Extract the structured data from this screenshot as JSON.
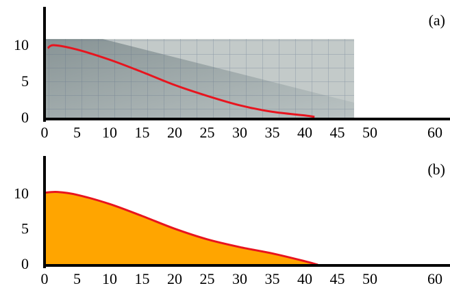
{
  "chart_data": [
    {
      "type": "line",
      "annotation": "(a)",
      "x": [
        0.5,
        1.5,
        5,
        10,
        15,
        20,
        25,
        30,
        35,
        40,
        41.5
      ],
      "values": [
        9.8,
        10.2,
        9.6,
        8.2,
        6.5,
        4.7,
        3.2,
        1.9,
        1.0,
        0.5,
        0.3
      ],
      "color": "#e8141e",
      "xlim": [
        0,
        62
      ],
      "xticks": [
        0,
        5,
        10,
        15,
        20,
        25,
        30,
        35,
        40,
        45,
        50,
        60
      ],
      "ylim": [
        0,
        15.5
      ],
      "yticks": [
        0,
        5,
        10
      ]
    },
    {
      "type": "area",
      "annotation": "(b)",
      "x": [
        0,
        2,
        5,
        10,
        15,
        20,
        25,
        30,
        35,
        40,
        42
      ],
      "values": [
        10.3,
        10.4,
        10.0,
        8.7,
        7.0,
        5.2,
        3.7,
        2.6,
        1.7,
        0.6,
        0.1
      ],
      "color": "#e8141e",
      "fill": "#ffa500",
      "xlim": [
        0,
        62
      ],
      "xticks": [
        0,
        5,
        10,
        15,
        20,
        25,
        30,
        35,
        40,
        45,
        50,
        60
      ],
      "ylim": [
        0,
        15.5
      ],
      "yticks": [
        0,
        5,
        10
      ]
    }
  ]
}
